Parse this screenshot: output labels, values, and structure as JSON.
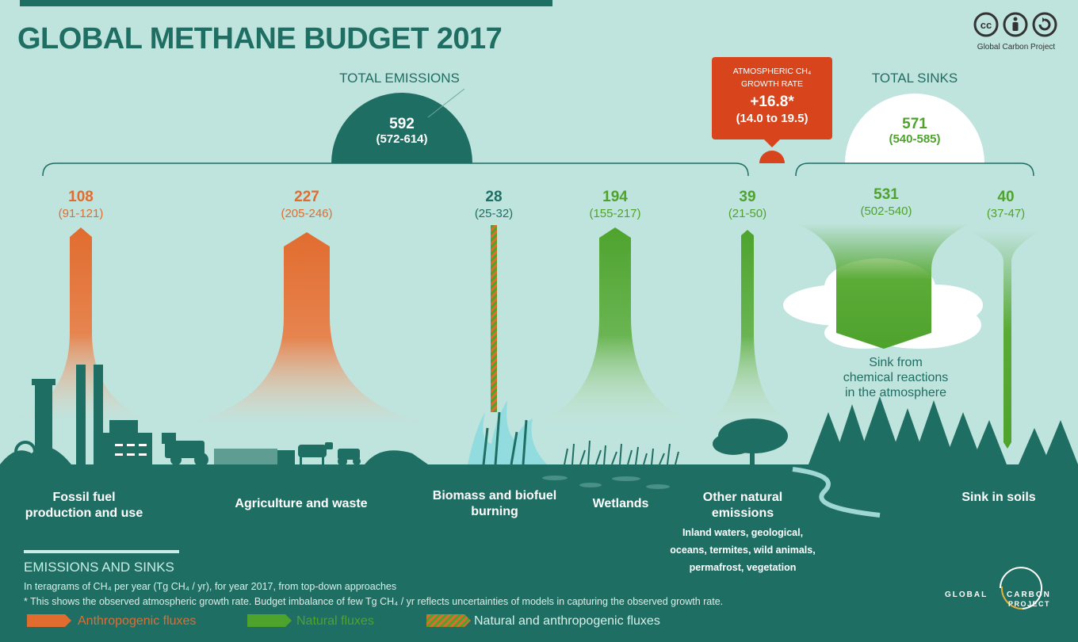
{
  "title": "GLOBAL METHANE BUDGET 2017",
  "license": {
    "caption": "Global Carbon Project",
    "icons": [
      "cc-icon",
      "attribution-icon",
      "share-alike-icon"
    ]
  },
  "total_emissions": {
    "heading": "TOTAL EMISSIONS",
    "value": "592",
    "range": "(572-614)"
  },
  "total_sinks": {
    "heading": "TOTAL SINKS",
    "value": "571",
    "range": "(540-585)"
  },
  "growth_rate": {
    "heading_line1": "ATMOSPHERIC CH₄",
    "heading_line2": "GROWTH RATE",
    "value": "+16.8*",
    "range": "(14.0 to 19.5)"
  },
  "fluxes": [
    {
      "value": "108",
      "range": "(91-121)",
      "type": "anthropogenic",
      "label_line1": "Fossil fuel",
      "label_line2": "production and use"
    },
    {
      "value": "227",
      "range": "(205-246)",
      "type": "anthropogenic",
      "label_line1": "Agriculture and waste",
      "label_line2": ""
    },
    {
      "value": "28",
      "range": "(25-32)",
      "type": "mixed",
      "label_line1": "Biomass and biofuel",
      "label_line2": "burning"
    },
    {
      "value": "194",
      "range": "(155-217)",
      "type": "natural",
      "label_line1": "Wetlands",
      "label_line2": ""
    },
    {
      "value": "39",
      "range": "(21-50)",
      "type": "natural",
      "label_line1": "Other natural",
      "label_line2": "emissions"
    }
  ],
  "other_natural_detail": [
    "Inland waters, geological,",
    "oceans, termites, wild animals,",
    "permafrost, vegetation"
  ],
  "sinks": [
    {
      "value": "531",
      "range": "(502-540)",
      "label": [
        "Sink from",
        "chemical reactions",
        "in the atmosphere"
      ]
    },
    {
      "value": "40",
      "range": "(37-47)",
      "label": [
        "Sink in soils"
      ]
    }
  ],
  "legend": {
    "heading": "EMISSIONS AND SINKS",
    "note1": "In teragrams of CH₄ per year (Tg CH₄ / yr),  for year 2017, from top-down approaches",
    "note2": "* This shows the observed atmospheric growth rate. Budget imbalance of few Tg  CH₄ / yr reflects uncertainties of models in capturing the observed growth rate.",
    "items": [
      {
        "label": "Anthropogenic fluxes",
        "color": "#e16c2f"
      },
      {
        "label": "Natural fluxes",
        "color": "#4ea32d"
      },
      {
        "label": "Natural and anthropogenic fluxes",
        "color": "#c58a2c"
      }
    ]
  },
  "gcp_logo": {
    "line1": "GLOBAL",
    "line2": "CARBON",
    "line3": "PROJECT"
  },
  "colors": {
    "teal": "#1f6e63",
    "orange": "#e16c2f",
    "green": "#4ea32d",
    "red": "#d8451d",
    "background": "#bfe3dd"
  }
}
